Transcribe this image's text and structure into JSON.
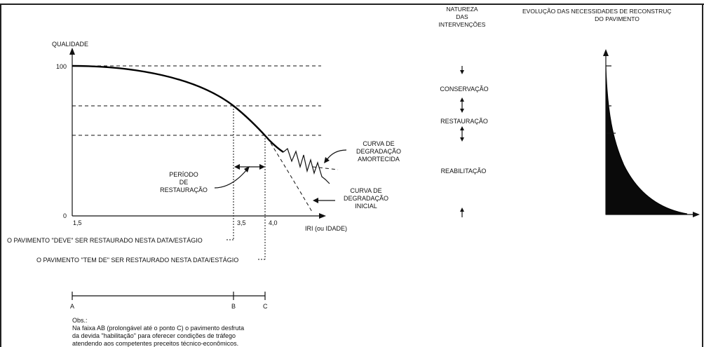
{
  "left_chart": {
    "y_axis_label": "QUALIDADE",
    "y_tick_top": "100",
    "y_tick_bottom": "0",
    "x_tick_start": "1,5",
    "x_tick_b": "3,5",
    "x_tick_c": "4,0",
    "x_axis_label": "IRI (ou IDADE)",
    "label_periodo": [
      "PERÍODO",
      "DE",
      "RESTAURAÇÃO"
    ],
    "label_amortecida": [
      "CURVA DE",
      "DEGRADAÇÃO",
      "AMORTECIDA"
    ],
    "label_inicial": [
      "CURVA DE",
      "DEGRADAÇÃO",
      "INICIAL"
    ],
    "note_deve": "O PAVIMENTO \"DEVE\" SER RESTAURADO NESTA DATA/ESTÁGIO",
    "note_tem_de": "O PAVIMENTO \"TEM DE\" SER RESTAURADO NESTA DATA/ESTÁGIO",
    "segment_a": "A",
    "segment_b": "B",
    "segment_c": "C",
    "obs_title": "Obs.:",
    "obs_lines": [
      "Na faixa AB (prolongável até o ponto C) o pavimento desfruta",
      "da devida \"habilitação\" para oferecer condições de tráfego",
      "atendendo aos competentes preceitos técnico-econômicos."
    ]
  },
  "middle_column": {
    "title": [
      "NATUREZA",
      "DAS",
      "INTERVENÇÕES"
    ],
    "items": [
      "CONSERVAÇÃO",
      "RESTAURAÇÃO",
      "REABILITAÇÃO"
    ]
  },
  "right_chart": {
    "title": [
      "EVOLUÇÃO DAS NECESSIDADES DE RECONSTRUÇ",
      "DO PAVIMENTO"
    ]
  },
  "colors": {
    "ink": "#111111",
    "border": "#222222",
    "background": "#ffffff"
  }
}
